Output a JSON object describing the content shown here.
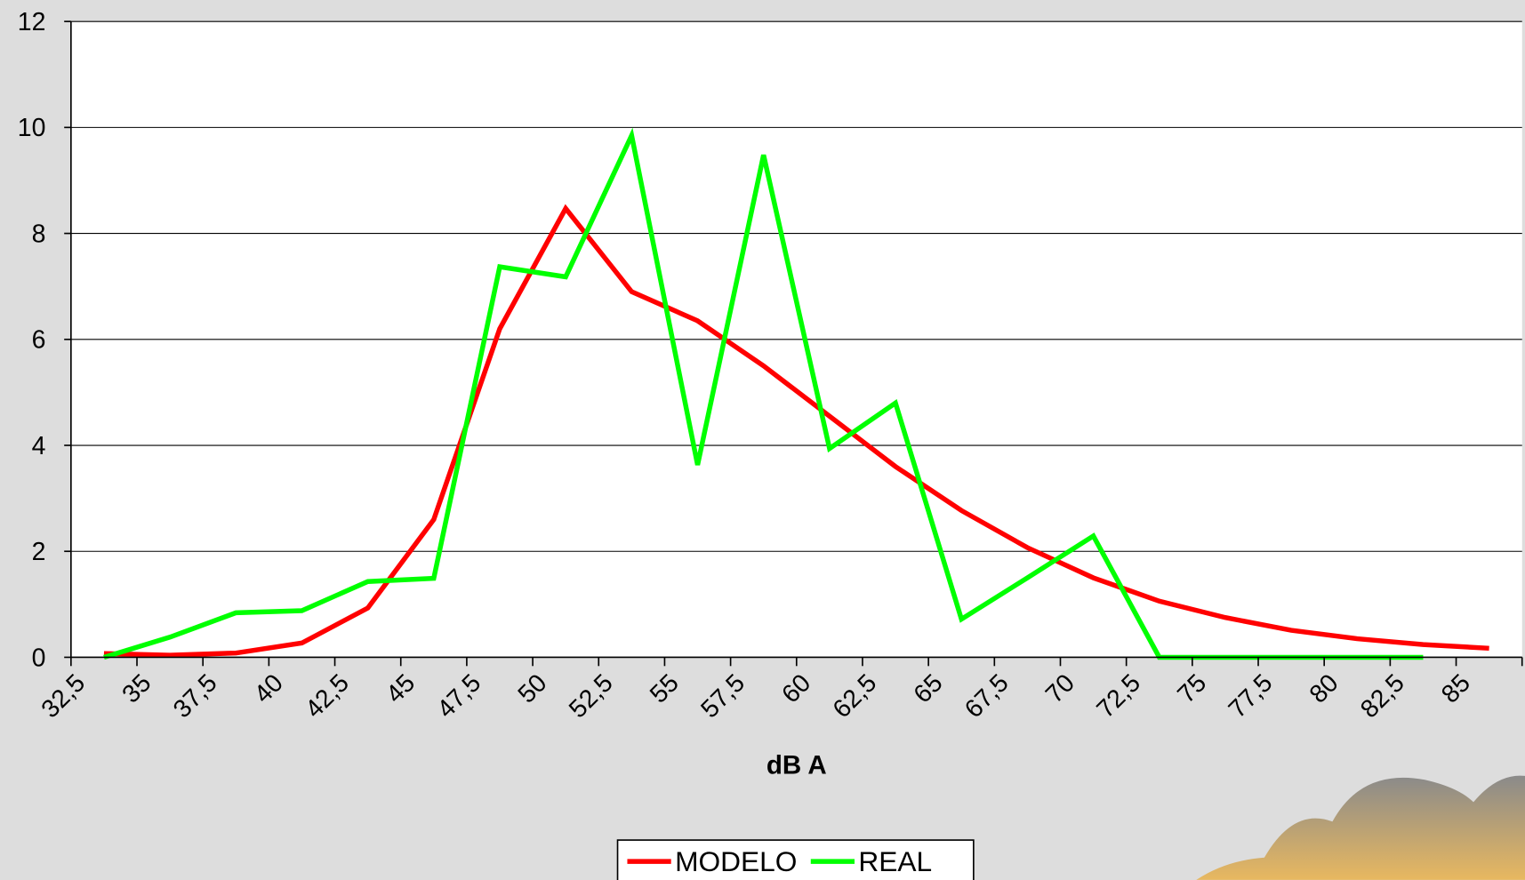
{
  "chart_data": {
    "type": "line",
    "x_label": "dB A",
    "categories": [
      "32,5",
      "35",
      "37,5",
      "40",
      "42,5",
      "45",
      "47,5",
      "50",
      "52,5",
      "55",
      "57,5",
      "60",
      "62,5",
      "65",
      "67,5",
      "70",
      "72,5",
      "75",
      "77,5",
      "80",
      "82,5",
      "85"
    ],
    "series": [
      {
        "name": "MODELO",
        "color": "#ff0000",
        "values": [
          0.07,
          0.04,
          0.08,
          0.27,
          0.93,
          2.6,
          6.2,
          8.47,
          6.9,
          6.35,
          5.5,
          4.55,
          3.6,
          2.77,
          2.07,
          1.5,
          1.06,
          0.75,
          0.51,
          0.35,
          0.24,
          0.17
        ]
      },
      {
        "name": "REAL",
        "color": "#00ff00",
        "values": [
          0,
          0.38,
          0.84,
          0.88,
          1.43,
          1.49,
          7.37,
          7.18,
          9.85,
          3.63,
          9.48,
          3.94,
          4.8,
          0.72,
          1.5,
          2.29,
          0,
          0,
          0,
          0,
          0,
          null
        ]
      }
    ],
    "ylim": [
      0,
      12
    ],
    "yticks": [
      0,
      2,
      4,
      6,
      8,
      10,
      12
    ],
    "grid": true,
    "legend": "bottom"
  }
}
